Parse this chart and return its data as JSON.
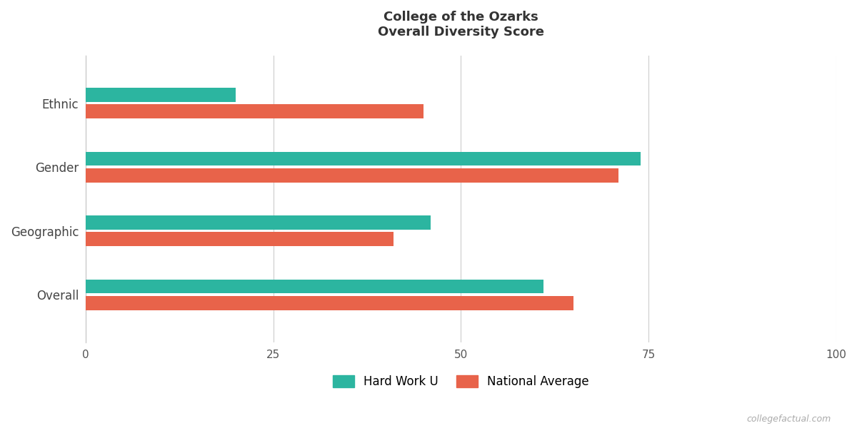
{
  "title_line1": "College of the Ozarks",
  "title_line2": "Overall Diversity Score",
  "categories": [
    "Ethnic",
    "Gender",
    "Geographic",
    "Overall"
  ],
  "hard_work_u": [
    20,
    74,
    46,
    61
  ],
  "national_avg": [
    45,
    71,
    41,
    65
  ],
  "hard_work_u_color": "#2cb5a0",
  "national_avg_color": "#e8634a",
  "xlim": [
    0,
    100
  ],
  "xticks": [
    0,
    25,
    50,
    75,
    100
  ],
  "bar_height": 0.22,
  "bar_gap": 0.04,
  "background_color": "#ffffff",
  "grid_color": "#cccccc",
  "legend_label_hwu": "Hard Work U",
  "legend_label_na": "National Average",
  "watermark": "collegefactual.com",
  "title_fontsize": 13,
  "label_fontsize": 12,
  "tick_fontsize": 11,
  "legend_fontsize": 12
}
